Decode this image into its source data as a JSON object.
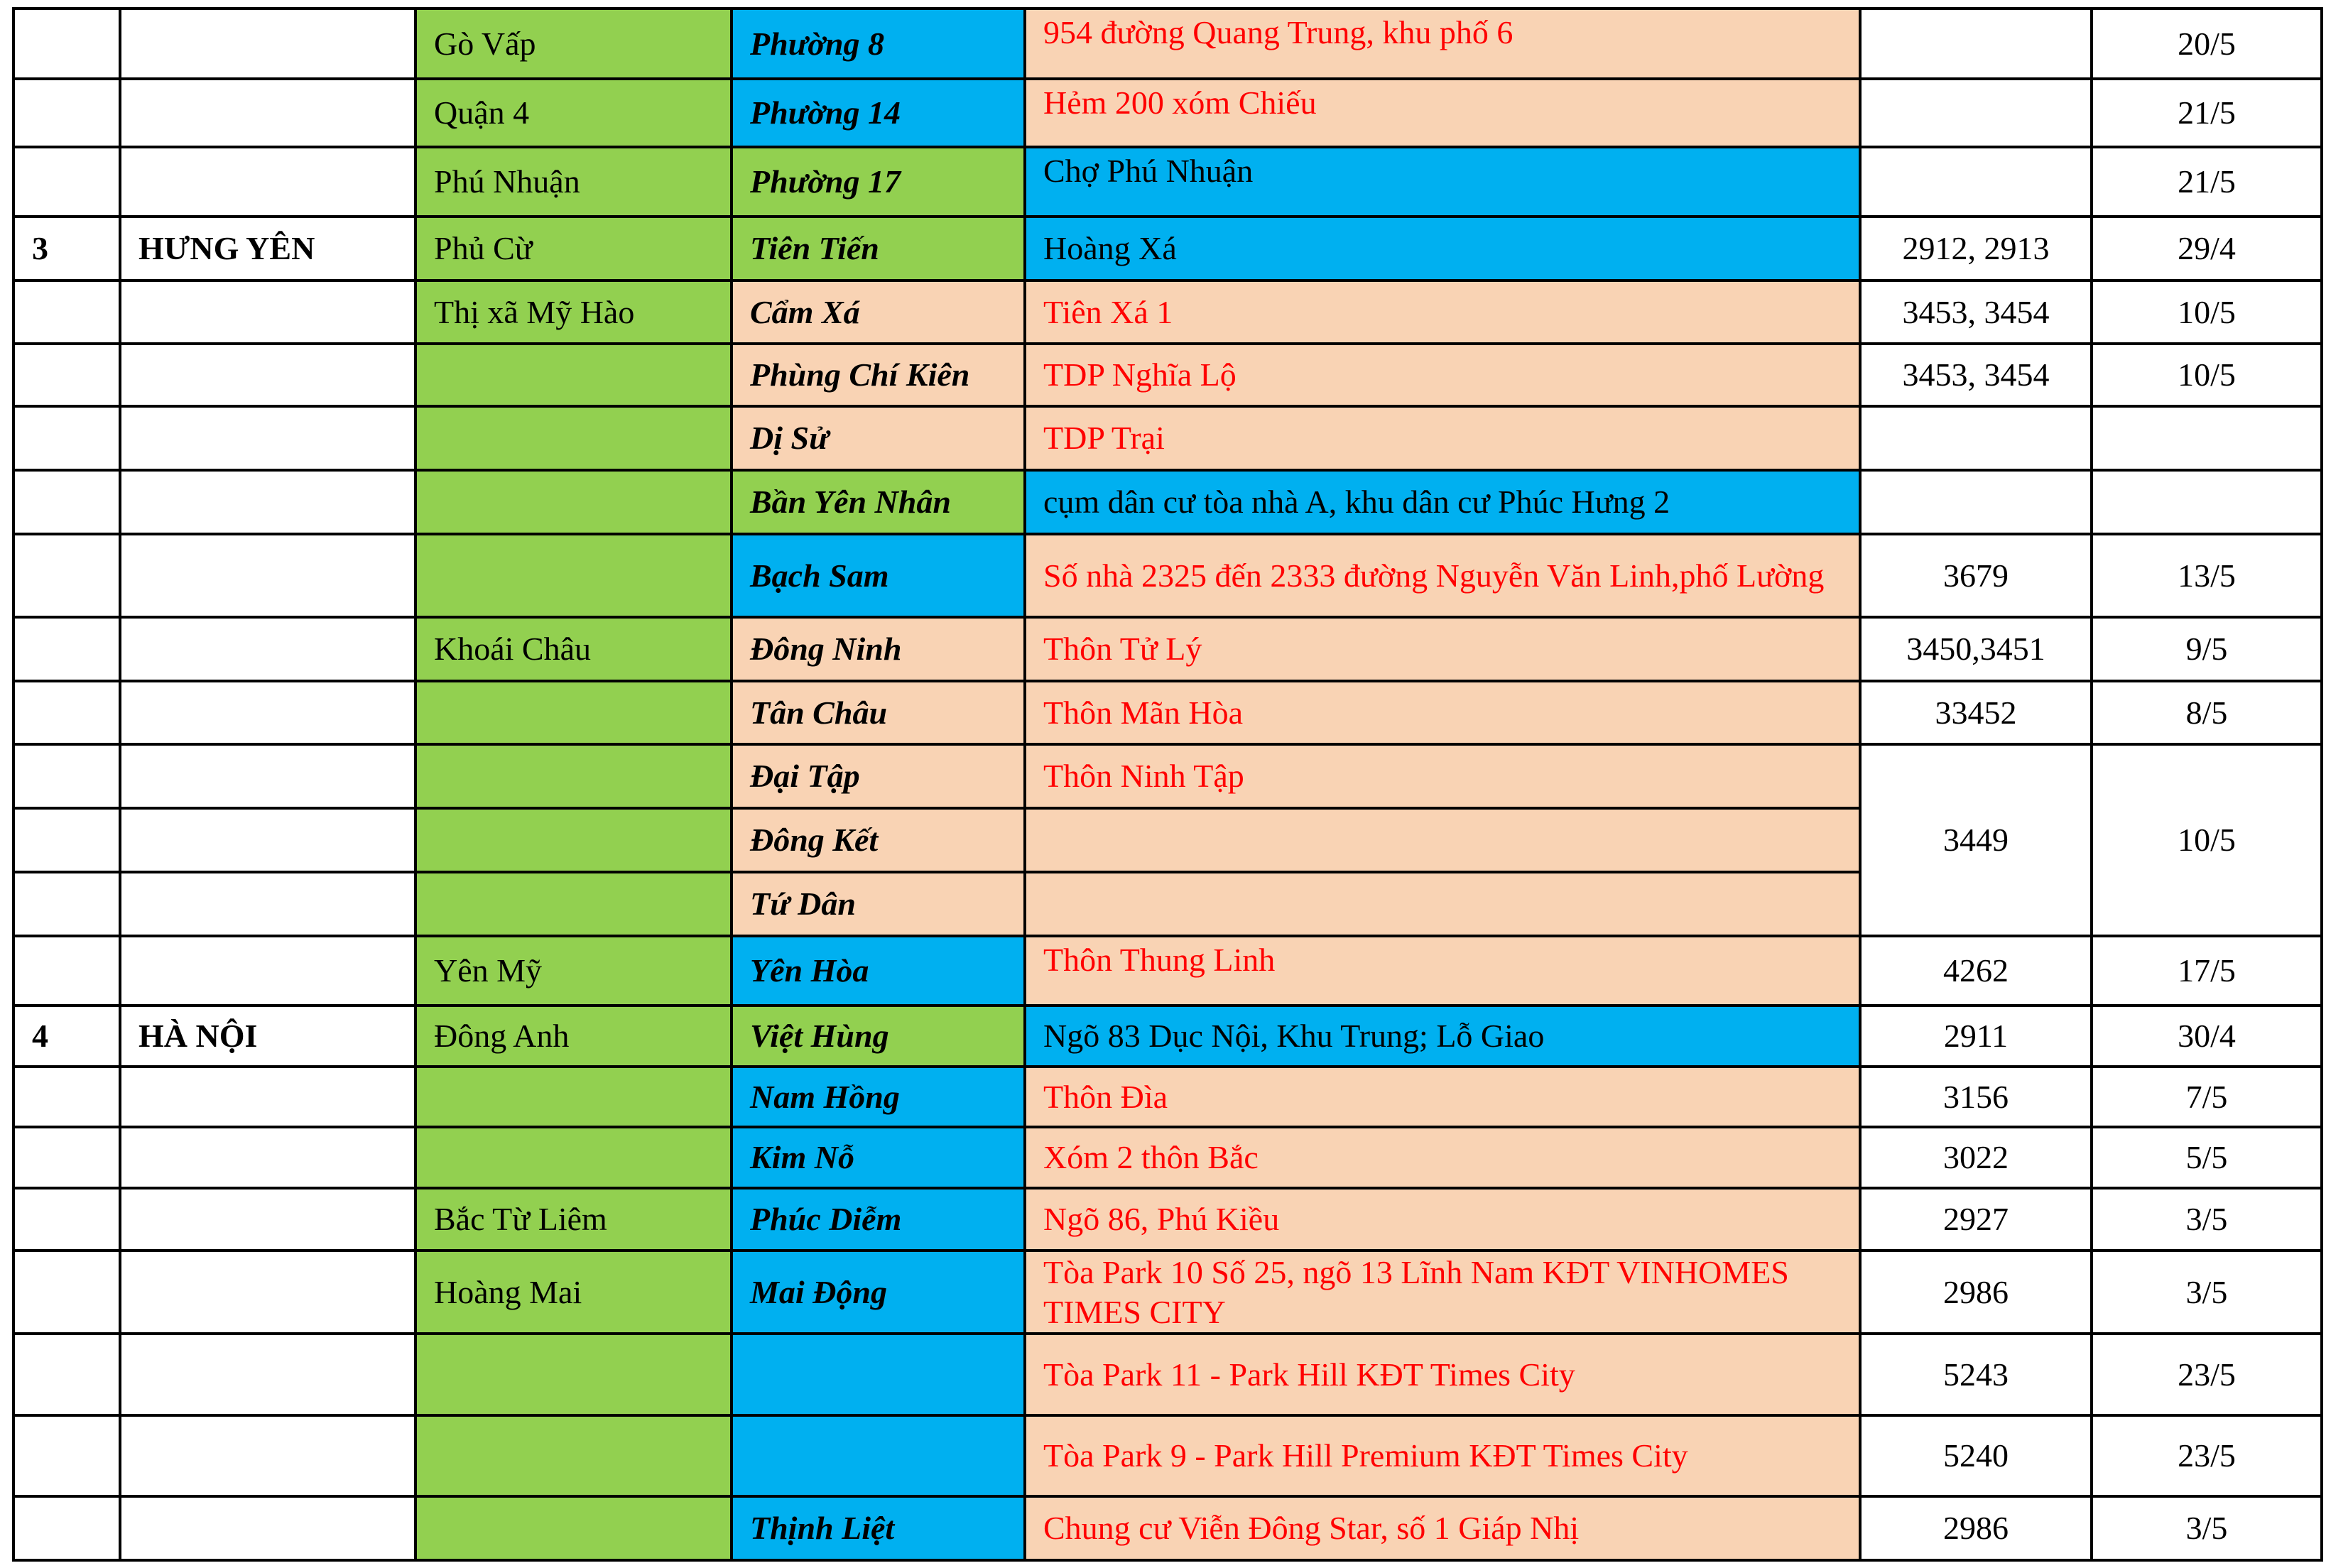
{
  "colors": {
    "green": "#92D050",
    "blue": "#00B0F0",
    "peach": "#F9D3B4",
    "red_text": "#FF0000"
  },
  "rows": [
    {
      "stt": "",
      "province": "",
      "district": "Gò Vấp",
      "ward": "Phường 8",
      "address": "954 đường Quang Trung, khu phố 6",
      "codes": "",
      "date": "20/5",
      "district_bg": "green",
      "ward_bg": "blue",
      "address_bg": "peach",
      "address_color": "red",
      "address_top": true
    },
    {
      "stt": "",
      "province": "",
      "district": "Quận 4",
      "ward": "Phường 14",
      "address": "Hẻm 200 xóm Chiếu",
      "codes": "",
      "date": "21/5",
      "district_bg": "green",
      "ward_bg": "blue",
      "address_bg": "peach",
      "address_color": "red",
      "address_top": true
    },
    {
      "stt": "",
      "province": "",
      "district": "Phú Nhuận",
      "ward": "Phường 17",
      "address": "Chợ Phú Nhuận",
      "codes": "",
      "date": "21/5",
      "district_bg": "green",
      "ward_bg": "green",
      "address_bg": "blue",
      "address_color": "black",
      "address_top": true
    },
    {
      "stt": "3",
      "province": "HƯNG YÊN",
      "district": "Phủ Cừ",
      "ward": "Tiên Tiến",
      "address": "Hoàng Xá",
      "codes": "2912, 2913",
      "date": "29/4",
      "district_bg": "green",
      "ward_bg": "green",
      "address_bg": "blue",
      "address_color": "black"
    },
    {
      "stt": "",
      "province": "",
      "district": "Thị xã Mỹ Hào",
      "ward": "Cẩm Xá",
      "address": "Tiên Xá 1",
      "codes": "3453, 3454",
      "date": "10/5",
      "district_bg": "green",
      "ward_bg": "peach",
      "address_bg": "peach",
      "address_color": "red"
    },
    {
      "stt": "",
      "province": "",
      "district": "",
      "ward": "Phùng Chí Kiên",
      "address": "TDP Nghĩa Lộ",
      "codes": "3453, 3454",
      "date": "10/5",
      "district_bg": "green",
      "ward_bg": "peach",
      "address_bg": "peach",
      "address_color": "red"
    },
    {
      "stt": "",
      "province": "",
      "district": "",
      "ward": "Dị Sử",
      "address": "TDP Trại",
      "codes": "",
      "date": "",
      "district_bg": "green",
      "ward_bg": "peach",
      "address_bg": "peach",
      "address_color": "red"
    },
    {
      "stt": "",
      "province": "",
      "district": "",
      "ward": "Bần Yên Nhân",
      "address": "cụm dân cư tòa nhà A, khu dân cư Phúc Hưng 2",
      "codes": "",
      "date": "",
      "district_bg": "green",
      "ward_bg": "green",
      "address_bg": "blue",
      "address_color": "black"
    },
    {
      "stt": "",
      "province": "",
      "district": "",
      "ward": "Bạch Sam",
      "address": "Số nhà 2325 đến 2333 đường Nguyễn Văn Linh,phố Lường",
      "codes": "3679",
      "date": "13/5",
      "district_bg": "green",
      "ward_bg": "blue",
      "address_bg": "peach",
      "address_color": "red"
    },
    {
      "stt": "",
      "province": "",
      "district": "Khoái Châu",
      "ward": "Đông Ninh",
      "address": "Thôn Tử Lý",
      "codes": "3450,3451",
      "date": "9/5",
      "district_bg": "green",
      "ward_bg": "peach",
      "address_bg": "peach",
      "address_color": "red"
    },
    {
      "stt": "",
      "province": "",
      "district": "",
      "ward": "Tân Châu",
      "address": "Thôn Mãn Hòa",
      "codes": "33452",
      "date": "8/5",
      "district_bg": "green",
      "ward_bg": "peach",
      "address_bg": "peach",
      "address_color": "red"
    },
    {
      "stt": "",
      "province": "",
      "district": "",
      "ward": "Đại Tập",
      "address": "Thôn Ninh Tập",
      "codes": "3449",
      "date": "10/5",
      "merge_down": 3,
      "district_bg": "green",
      "ward_bg": "peach",
      "address_bg": "peach",
      "address_color": "red"
    },
    {
      "stt": "",
      "province": "",
      "district": "",
      "ward": "Đông Kết",
      "address": "",
      "merged": true,
      "district_bg": "green",
      "ward_bg": "peach",
      "address_bg": "peach",
      "address_color": "red"
    },
    {
      "stt": "",
      "province": "",
      "district": "",
      "ward": "Tứ Dân",
      "address": "",
      "merged": true,
      "district_bg": "green",
      "ward_bg": "peach",
      "address_bg": "peach",
      "address_color": "red"
    },
    {
      "stt": "",
      "province": "",
      "district": "Yên Mỹ",
      "ward": "Yên Hòa",
      "address": "Thôn Thung Linh",
      "codes": "4262",
      "date": "17/5",
      "district_bg": "green",
      "ward_bg": "blue",
      "address_bg": "peach",
      "address_color": "red",
      "address_top": true
    },
    {
      "stt": "4",
      "province": "HÀ NỘI",
      "district": "Đông Anh",
      "ward": "Việt Hùng",
      "address": "Ngõ 83 Dục Nội, Khu Trung; Lỗ Giao",
      "codes": "2911",
      "date": "30/4",
      "district_bg": "green",
      "ward_bg": "green",
      "address_bg": "blue",
      "address_color": "black"
    },
    {
      "stt": "",
      "province": "",
      "district": "",
      "ward": "Nam Hồng",
      "address": "Thôn Đìa",
      "codes": "3156",
      "date": "7/5",
      "district_bg": "green",
      "ward_bg": "blue",
      "address_bg": "peach",
      "address_color": "red"
    },
    {
      "stt": "",
      "province": "",
      "district": "",
      "ward": "Kim Nỗ",
      "address": "Xóm 2 thôn Bắc",
      "codes": "3022",
      "date": "5/5",
      "district_bg": "green",
      "ward_bg": "blue",
      "address_bg": "peach",
      "address_color": "red"
    },
    {
      "stt": "",
      "province": "",
      "district": "Bắc Từ Liêm",
      "ward": "Phúc Diễm",
      "address": "Ngõ 86, Phú Kiều",
      "codes": "2927",
      "date": "3/5",
      "district_bg": "green",
      "ward_bg": "blue",
      "address_bg": "peach",
      "address_color": "red"
    },
    {
      "stt": "",
      "province": "",
      "district": "Hoàng Mai",
      "ward": "Mai Động",
      "address": "Tòa Park 10 Số 25, ngõ 13 Lĩnh Nam KĐT VINHOMES TIMES CITY",
      "codes": "2986",
      "date": "3/5",
      "district_bg": "green",
      "ward_bg": "blue",
      "address_bg": "peach",
      "address_color": "red"
    },
    {
      "stt": "",
      "province": "",
      "district": "",
      "ward": "",
      "address": "Tòa Park 11 - Park Hill KĐT Times City",
      "codes": "5243",
      "date": "23/5",
      "district_bg": "green",
      "ward_bg": "blue",
      "address_bg": "peach",
      "address_color": "red"
    },
    {
      "stt": "",
      "province": "",
      "district": "",
      "ward": "",
      "address": "Tòa Park 9 - Park Hill Premium KĐT Times City",
      "codes": "5240",
      "date": "23/5",
      "district_bg": "green",
      "ward_bg": "blue",
      "address_bg": "peach",
      "address_color": "red"
    },
    {
      "stt": "",
      "province": "",
      "district": "",
      "ward": "Thịnh Liệt",
      "address": "Chung cư Viễn Đông Star, số 1 Giáp Nhị",
      "codes": "2986",
      "date": "3/5",
      "district_bg": "green",
      "ward_bg": "blue",
      "address_bg": "peach",
      "address_color": "red"
    }
  ]
}
